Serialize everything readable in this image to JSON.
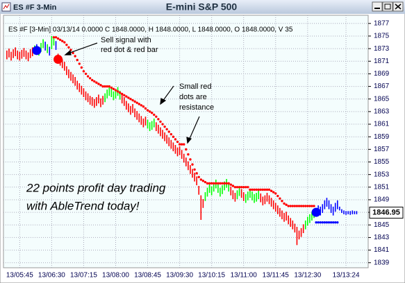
{
  "chart_data": {
    "type": "ohlc",
    "window_title": "ES #F 3-Min",
    "title": "E-mini S&P 500",
    "legend_text": "ES #F [3-Min] 03/13/14  0.0000 C 1848.0000, H 1848.0000, L 1848.0000, O 1848.0000, V 35",
    "annotations": [
      [
        "Sell signal with",
        "red dot & red bar"
      ],
      [
        "Small red",
        "dots are",
        "resistance"
      ],
      [
        "22 points profit day trading",
        "with AbleTrend today!"
      ]
    ],
    "last_price": 1846.95,
    "grid": true,
    "xlim": [
      -1.6,
      169.4
    ],
    "xticks": [
      {
        "value": 6,
        "label": "13/05:45"
      },
      {
        "value": 21,
        "label": "13/06:30"
      },
      {
        "value": 36,
        "label": "13/07:15"
      },
      {
        "value": 51,
        "label": "13/08:00"
      },
      {
        "value": 66,
        "label": "13/08:45"
      },
      {
        "value": 81,
        "label": "13/09:30"
      },
      {
        "value": 96,
        "label": "13/10:15"
      },
      {
        "value": 111,
        "label": "13/11:00"
      },
      {
        "value": 126,
        "label": "13/11:45"
      },
      {
        "value": 141,
        "label": "13/12:30"
      },
      {
        "value": 159,
        "label": "13/13:24"
      }
    ],
    "ylim": [
      1838.2,
      1878.3
    ],
    "yticks": [
      1839,
      1841,
      1843,
      1845,
      1847,
      1849,
      1851,
      1853,
      1855,
      1857,
      1859,
      1861,
      1863,
      1865,
      1867,
      1869,
      1871,
      1873,
      1875,
      1877
    ],
    "high": [
      1872.7,
      1873,
      1872.5,
      1872.9,
      1873.2,
      1872.7,
      1872.5,
      1872.8,
      1873.1,
      1872.7,
      1872.4,
      1872.9,
      1873.2,
      1873.5,
      1873.7,
      1873.3,
      1873.9,
      1874.5,
      1874.1,
      1873.7,
      1873.3,
      1875,
      1874.9,
      1874.2,
      1872.2,
      1871.7,
      1871.3,
      1870.9,
      1870.2,
      1869.7,
      1869.3,
      1868.9,
      1868.5,
      1867.9,
      1867.5,
      1867.1,
      1866.7,
      1866.2,
      1865.9,
      1865.5,
      1865.3,
      1865,
      1865.3,
      1865.7,
      1865.1,
      1865.5,
      1865.9,
      1866.5,
      1866.9,
      1866.7,
      1866.2,
      1866.5,
      1866.9,
      1866.3,
      1865.7,
      1865.3,
      1864.7,
      1864.3,
      1863.9,
      1864.2,
      1863.5,
      1863.1,
      1862.7,
      1862.3,
      1861.9,
      1862.2,
      1861.7,
      1861.3,
      1861.5,
      1861.9,
      1861.3,
      1860.9,
      1860.5,
      1860.1,
      1859.7,
      1859.3,
      1858.9,
      1858.5,
      1858.1,
      1857.7,
      1857.3,
      1857.5,
      1856.9,
      1856.3,
      1855.7,
      1855.1,
      1854.5,
      1853.9,
      1853.3,
      1852.7,
      1851.2,
      1849.7,
      1849.1,
      1850.2,
      1850.9,
      1851.5,
      1851.1,
      1851.7,
      1852.2,
      1851.5,
      1850.9,
      1851.3,
      1851.9,
      1852.3,
      1851.7,
      1851.1,
      1850.5,
      1850.1,
      1850.5,
      1851,
      1850.7,
      1850.2,
      1849.9,
      1850.3,
      1850.7,
      1850.3,
      1849.9,
      1850.1,
      1850.5,
      1850,
      1849.5,
      1849.7,
      1850.1,
      1849.7,
      1849.3,
      1848.9,
      1848.5,
      1848.1,
      1847.7,
      1847.3,
      1846.9,
      1847.1,
      1846.5,
      1846.1,
      1845.7,
      1845.2,
      1844.7,
      1844.1,
      1844.5,
      1845.1,
      1845.7,
      1846.3,
      1846.7,
      1847.1,
      1847.5,
      1847.7,
      1848.1,
      1847.9,
      1848.3,
      1848.9,
      1849.3,
      1848.9,
      1848.3,
      1847.9,
      1848.5,
      1848.9,
      1847.9,
      1847.5,
      1847.3,
      1847.2,
      1847.2,
      1847.2,
      1847.3,
      1847.2,
      1847.2
    ],
    "low": [
      1871.3,
      1871.6,
      1871.1,
      1871.5,
      1871.8,
      1871.3,
      1871.1,
      1871.4,
      1871.7,
      1871.3,
      1871,
      1871.5,
      1871.8,
      1872.1,
      1872.3,
      1871.9,
      1872.5,
      1873.1,
      1872.7,
      1872.3,
      1871.9,
      1872.9,
      1873.5,
      1872.8,
      1870.8,
      1870.3,
      1869.9,
      1869.5,
      1868.8,
      1868.3,
      1867.9,
      1867.5,
      1867.1,
      1866.5,
      1866.1,
      1865.7,
      1865.3,
      1864.8,
      1864.5,
      1864.1,
      1863.9,
      1863.6,
      1863.9,
      1864.3,
      1863.7,
      1864.1,
      1864.5,
      1865.1,
      1865.5,
      1865.3,
      1864.8,
      1865.1,
      1865.5,
      1864.9,
      1864.3,
      1863.9,
      1863.3,
      1862.9,
      1862.5,
      1862.8,
      1862.1,
      1861.7,
      1861.3,
      1860.9,
      1860.5,
      1860.8,
      1860.3,
      1859.9,
      1860.1,
      1860.5,
      1859.9,
      1859.5,
      1859.1,
      1858.7,
      1858.3,
      1857.9,
      1857.5,
      1857.1,
      1856.7,
      1856.3,
      1855.9,
      1856.1,
      1855.5,
      1854.9,
      1854.3,
      1853.7,
      1853.1,
      1852.5,
      1851.9,
      1851.3,
      1849.8,
      1845.8,
      1847.7,
      1848.8,
      1849.5,
      1850.1,
      1849.7,
      1850.3,
      1850.8,
      1850.1,
      1849.5,
      1849.9,
      1850.5,
      1850.9,
      1850.3,
      1849.7,
      1849.1,
      1848.7,
      1849.1,
      1849.6,
      1849.3,
      1848.8,
      1848.5,
      1848.9,
      1849.3,
      1848.9,
      1848.5,
      1848.7,
      1849.1,
      1848.6,
      1848.1,
      1848.3,
      1848.7,
      1848.3,
      1847.9,
      1847.5,
      1847.1,
      1846.7,
      1846.3,
      1845.9,
      1845.5,
      1845.7,
      1845.1,
      1844.7,
      1844.3,
      1843.8,
      1841.8,
      1842.7,
      1843.1,
      1843.7,
      1844.3,
      1844.9,
      1845.3,
      1845.7,
      1846.1,
      1846.3,
      1846.7,
      1846.5,
      1846.9,
      1847.5,
      1847.9,
      1847.5,
      1846.9,
      1846.5,
      1847.1,
      1847.5,
      1847.3,
      1846.9,
      1846.7,
      1846.6,
      1846.7,
      1846.6,
      1846.7,
      1846.7,
      1846.7
    ],
    "bar_colors": [
      "red",
      "red",
      "red",
      "red",
      "red",
      "red",
      "red",
      "red",
      "red",
      "red",
      "red",
      "red",
      "red",
      "lime",
      "blue",
      "lime",
      "lime",
      "lime",
      "blue",
      "lime",
      "blue",
      "lime",
      "lime",
      "blue",
      "red",
      "red",
      "red",
      "red",
      "red",
      "red",
      "red",
      "red",
      "red",
      "red",
      "red",
      "red",
      "red",
      "red",
      "red",
      "red",
      "red",
      "red",
      "red",
      "red",
      "red",
      "red",
      "lime",
      "lime",
      "lime",
      "lime",
      "lime",
      "lime",
      "lime",
      "lime",
      "red",
      "red",
      "red",
      "red",
      "red",
      "red",
      "red",
      "red",
      "red",
      "red",
      "red",
      "red",
      "lime",
      "lime",
      "lime",
      "lime",
      "red",
      "red",
      "red",
      "red",
      "red",
      "red",
      "red",
      "red",
      "red",
      "red",
      "red",
      "red",
      "red",
      "red",
      "red",
      "red",
      "red",
      "red",
      "red",
      "red",
      "red",
      "red",
      "red",
      "lime",
      "lime",
      "lime",
      "lime",
      "lime",
      "lime",
      "lime",
      "lime",
      "lime",
      "lime",
      "lime",
      "lime",
      "red",
      "red",
      "red",
      "lime",
      "lime",
      "red",
      "red",
      "lime",
      "lime",
      "lime",
      "lime",
      "lime",
      "lime",
      "lime",
      "red",
      "red",
      "red",
      "red",
      "red",
      "red",
      "red",
      "red",
      "red",
      "red",
      "red",
      "red",
      "red",
      "red",
      "red",
      "red",
      "red",
      "red",
      "red",
      "red",
      "red",
      "lime",
      "lime",
      "lime",
      "lime",
      "lime",
      "blue",
      "blue",
      "blue",
      "blue",
      "blue",
      "blue",
      "blue",
      "blue",
      "blue",
      "blue",
      "blue",
      "blue",
      "blue",
      "blue",
      "blue",
      "blue",
      "blue",
      "blue",
      "blue",
      "blue"
    ],
    "resistance_dots": {
      "color": "red",
      "values": [
        null,
        null,
        null,
        null,
        null,
        null,
        null,
        null,
        null,
        null,
        null,
        null,
        null,
        null,
        null,
        null,
        null,
        null,
        null,
        null,
        null,
        null,
        1874.8,
        1874.8,
        1874.6,
        1874.4,
        1874.2,
        1874,
        1873.6,
        1873.2,
        1872.8,
        1872.3,
        1871.8,
        1871.2,
        1870.6,
        1870,
        1869.4,
        1869,
        1868.6,
        1868.3,
        1868,
        1867.8,
        1867.6,
        1867.4,
        1867.2,
        1867,
        1867,
        1867,
        1867,
        1866.8,
        1866.6,
        1866.4,
        1866.2,
        1866,
        1865.8,
        1865.6,
        1865.4,
        1865.2,
        1865,
        1864.8,
        1864.6,
        1864.4,
        1864.2,
        1864,
        1863.8,
        1863.5,
        1863.2,
        1863,
        1862.8,
        1862.5,
        1862.2,
        1861.8,
        1861.4,
        1861,
        1860.6,
        1860.2,
        1859.8,
        1859.4,
        1859,
        1858.6,
        1858.2,
        1857.8,
        1857.8,
        1857.8,
        1857,
        1856.2,
        1855.4,
        1854.6,
        1853.8,
        1853.2,
        1852.6,
        1852.2,
        1852,
        1851.8,
        1851.6,
        1851.6,
        1851.6,
        1851.6,
        1851.6,
        1851.6,
        1851.6,
        1851.6,
        1851.6,
        1851.6,
        1851.6,
        1851.4,
        1851.2,
        1851,
        1851,
        1851,
        1851,
        1851,
        1851,
        1851,
        1850.6,
        1850.6,
        1850.6,
        1850.6,
        1850.6,
        1850.6,
        1850.6,
        1850.6,
        1850.6,
        1850.6,
        1850.4,
        1850.2,
        1850,
        1849.6,
        1849.2,
        1848.8,
        1848.4,
        1848.2,
        1848,
        1848,
        1848,
        1848,
        1848,
        1848,
        1848,
        1848,
        1848,
        1848,
        1848,
        1848,
        1848,
        null,
        null,
        null,
        null,
        null,
        null,
        null,
        null,
        null,
        null,
        null,
        null,
        null,
        null,
        null,
        null,
        null,
        null,
        null,
        null
      ]
    },
    "support_dots": {
      "color": "blue",
      "x": [
        145,
        146,
        147,
        148,
        149,
        150,
        151,
        152,
        153,
        154,
        155
      ],
      "values": [
        1845.4,
        1845.4,
        1845.4,
        1845.4,
        1845.4,
        1845.4,
        1845.4,
        1845.4,
        1845.4,
        1845.4,
        1845.4
      ]
    },
    "signals": {
      "x": [
        14,
        24,
        145
      ],
      "values": [
        1872.7,
        1871.3,
        1847
      ],
      "colors": [
        "blue",
        "red",
        "blue"
      ]
    }
  }
}
